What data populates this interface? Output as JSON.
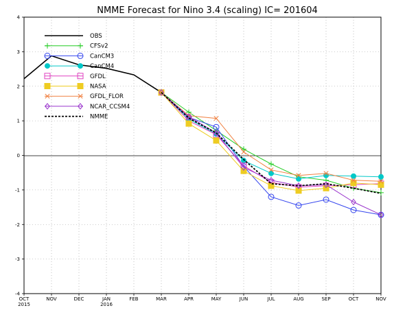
{
  "chart_data": {
    "type": "line",
    "title": "NMME Forecast for Nino 3.4 (scaling) IC= 201604",
    "xlabel": "",
    "ylabel": "",
    "ylim": [
      -4,
      4
    ],
    "yticks": [
      -4,
      -3,
      -2,
      -1,
      0,
      1,
      2,
      3,
      4
    ],
    "grid": true,
    "legend_position": "top-left",
    "x_ticks": [
      {
        "label": "OCT",
        "sub": "2015"
      },
      {
        "label": "NOV",
        "sub": ""
      },
      {
        "label": "DEC",
        "sub": ""
      },
      {
        "label": "JAN",
        "sub": "2016"
      },
      {
        "label": "FEB",
        "sub": ""
      },
      {
        "label": "MAR",
        "sub": ""
      },
      {
        "label": "APR",
        "sub": ""
      },
      {
        "label": "MAY",
        "sub": ""
      },
      {
        "label": "JUN",
        "sub": ""
      },
      {
        "label": "JUL",
        "sub": ""
      },
      {
        "label": "AUG",
        "sub": ""
      },
      {
        "label": "SEP",
        "sub": ""
      },
      {
        "label": "OCT",
        "sub": ""
      },
      {
        "label": "NOV",
        "sub": ""
      }
    ],
    "series": [
      {
        "name": "OBS",
        "color": "#000000",
        "marker": "none",
        "dash": "",
        "width": 1.6,
        "start": 0,
        "values": [
          2.22,
          2.88,
          2.62,
          2.52,
          2.33,
          1.82
        ]
      },
      {
        "name": "CFSv2",
        "color": "#22cc22",
        "marker": "plus",
        "dash": "",
        "width": 1,
        "start": 5,
        "values": [
          1.82,
          1.25,
          0.72,
          0.18,
          -0.25,
          -0.62,
          -0.72,
          -0.95,
          -1.08
        ]
      },
      {
        "name": "CanCM3",
        "color": "#3344ee",
        "marker": "circle-open",
        "dash": "",
        "width": 1,
        "start": 5,
        "values": [
          1.82,
          1.1,
          0.82,
          -0.32,
          -1.2,
          -1.45,
          -1.28,
          -1.58,
          -1.72
        ]
      },
      {
        "name": "CanCM4",
        "color": "#00c8c8",
        "marker": "circle-filled",
        "dash": "",
        "width": 1,
        "start": 5,
        "values": [
          1.82,
          1.05,
          0.62,
          -0.15,
          -0.52,
          -0.68,
          -0.58,
          -0.6,
          -0.62
        ]
      },
      {
        "name": "GFDL",
        "color": "#e040c0",
        "marker": "square-open",
        "dash": "",
        "width": 1,
        "start": 5,
        "values": [
          1.82,
          1.0,
          0.6,
          -0.3,
          -0.78,
          -0.92,
          -0.88,
          -0.85,
          -0.82
        ]
      },
      {
        "name": "NASA",
        "color": "#eecc22",
        "marker": "square-filled",
        "dash": "",
        "width": 1,
        "start": 5,
        "values": [
          1.82,
          0.92,
          0.43,
          -0.45,
          -0.88,
          -1.02,
          -0.95,
          -0.8,
          -0.85
        ]
      },
      {
        "name": "GFDL_FLOR",
        "color": "#f08040",
        "marker": "x",
        "dash": "",
        "width": 1,
        "start": 5,
        "values": [
          1.82,
          1.15,
          1.07,
          0.1,
          -0.42,
          -0.58,
          -0.52,
          -0.72,
          -0.75
        ]
      },
      {
        "name": "NCAR_CCSM4",
        "color": "#9933cc",
        "marker": "diamond-open",
        "dash": "",
        "width": 1,
        "start": 5,
        "values": [
          1.82,
          1.12,
          0.65,
          -0.35,
          -0.72,
          -0.88,
          -0.85,
          -1.35,
          -1.72
        ]
      },
      {
        "name": "NMME",
        "color": "#000000",
        "marker": "none",
        "dash": "3,2",
        "width": 1.8,
        "start": 5,
        "values": [
          1.82,
          1.08,
          0.65,
          -0.12,
          -0.82,
          -0.88,
          -0.82,
          -0.95,
          -1.1
        ]
      }
    ]
  }
}
